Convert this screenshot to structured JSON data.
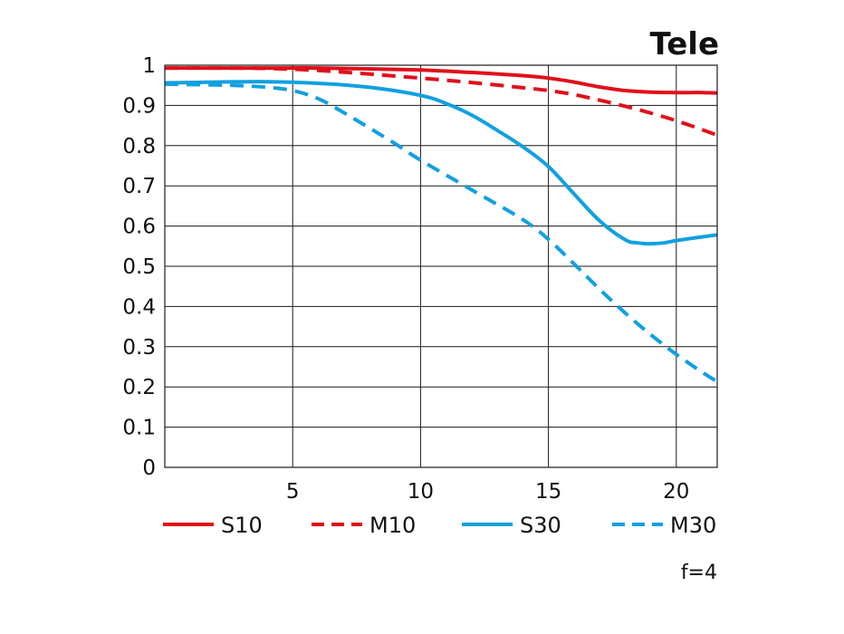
{
  "chart_data": {
    "type": "line",
    "title": "Tele",
    "note": "f=4",
    "xlabel": "",
    "ylabel": "",
    "xlim": [
      0,
      21.6
    ],
    "ylim": [
      0,
      1
    ],
    "x_ticks": [
      5,
      10,
      15,
      20
    ],
    "y_ticks": [
      0,
      0.1,
      0.2,
      0.3,
      0.4,
      0.5,
      0.6,
      0.7,
      0.8,
      0.9,
      1
    ],
    "y_tick_labels": [
      "0",
      "0.1",
      "0.2",
      "0.3",
      "0.4",
      "0.5",
      "0.6",
      "0.7",
      "0.8",
      "0.9",
      "1"
    ],
    "grid": true,
    "legend_position": "bottom",
    "series": [
      {
        "name": "S10",
        "color": "#e0101a",
        "dash": "solid",
        "x": [
          0,
          2,
          4,
          6,
          8,
          10,
          12,
          14,
          15,
          16,
          17,
          18,
          19,
          20,
          21,
          21.6
        ],
        "y": [
          0.993,
          0.993,
          0.993,
          0.993,
          0.991,
          0.988,
          0.982,
          0.974,
          0.968,
          0.958,
          0.946,
          0.937,
          0.933,
          0.932,
          0.932,
          0.931
        ]
      },
      {
        "name": "M10",
        "color": "#e0101a",
        "dash": "dashed",
        "x": [
          0,
          2,
          4,
          6,
          8,
          10,
          12,
          14,
          15,
          16,
          17,
          18,
          19,
          20,
          21,
          21.6
        ],
        "y": [
          0.993,
          0.993,
          0.992,
          0.987,
          0.978,
          0.968,
          0.957,
          0.944,
          0.937,
          0.927,
          0.913,
          0.898,
          0.881,
          0.862,
          0.84,
          0.826
        ]
      },
      {
        "name": "S30",
        "color": "#11a0e0",
        "dash": "solid",
        "x": [
          0,
          2,
          4,
          6,
          8,
          10,
          11,
          12,
          13,
          14,
          15,
          16,
          17,
          18,
          18.5,
          19,
          19.5,
          20,
          21,
          21.6
        ],
        "y": [
          0.956,
          0.958,
          0.959,
          0.955,
          0.945,
          0.925,
          0.905,
          0.876,
          0.838,
          0.797,
          0.748,
          0.68,
          0.613,
          0.566,
          0.558,
          0.556,
          0.558,
          0.564,
          0.573,
          0.578
        ]
      },
      {
        "name": "M30",
        "color": "#11a0e0",
        "dash": "dashed",
        "x": [
          0,
          2,
          3,
          4,
          5,
          6,
          7,
          8,
          9,
          10,
          12,
          14,
          15,
          16,
          17,
          18,
          19,
          20,
          21,
          21.6
        ],
        "y": [
          0.953,
          0.951,
          0.949,
          0.945,
          0.937,
          0.917,
          0.882,
          0.844,
          0.805,
          0.764,
          0.69,
          0.616,
          0.567,
          0.506,
          0.443,
          0.384,
          0.33,
          0.281,
          0.237,
          0.213
        ]
      }
    ]
  }
}
